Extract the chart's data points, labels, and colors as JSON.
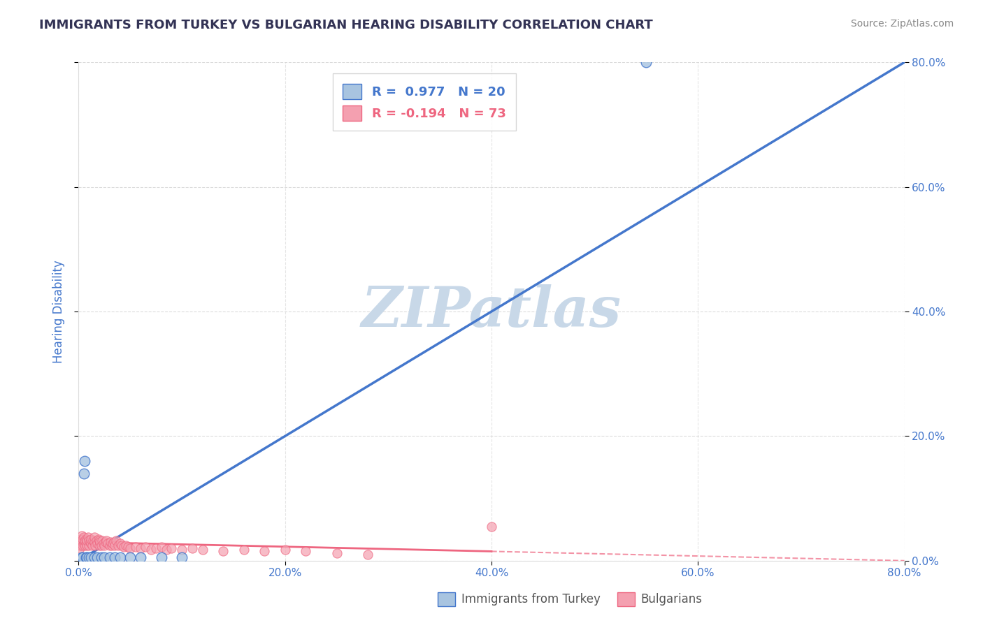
{
  "title": "IMMIGRANTS FROM TURKEY VS BULGARIAN HEARING DISABILITY CORRELATION CHART",
  "source_text": "Source: ZipAtlas.com",
  "ylabel": "Hearing Disability",
  "xlim": [
    0,
    0.8
  ],
  "ylim": [
    0,
    0.8
  ],
  "xticks": [
    0.0,
    0.2,
    0.4,
    0.6,
    0.8
  ],
  "yticks": [
    0.0,
    0.2,
    0.4,
    0.6,
    0.8
  ],
  "xtick_labels": [
    "0.0%",
    "20.0%",
    "40.0%",
    "60.0%",
    "80.0%"
  ],
  "ytick_labels": [
    "0.0%",
    "20.0%",
    "40.0%",
    "60.0%",
    "80.0%"
  ],
  "blue_color": "#A8C4E0",
  "pink_color": "#F4A0B0",
  "blue_line_color": "#4477CC",
  "pink_line_color": "#EE6680",
  "R_blue": 0.977,
  "N_blue": 20,
  "R_pink": -0.194,
  "N_pink": 73,
  "legend_label_blue": "Immigrants from Turkey",
  "legend_label_pink": "Bulgarians",
  "watermark": "ZIPatlas",
  "watermark_color": "#C8D8E8",
  "background_color": "#FFFFFF",
  "grid_color": "#CCCCCC",
  "title_color": "#333355",
  "axis_label_color": "#4477CC",
  "tick_label_color": "#4477CC",
  "blue_points_x": [
    0.003,
    0.004,
    0.005,
    0.006,
    0.007,
    0.008,
    0.01,
    0.012,
    0.015,
    0.018,
    0.022,
    0.025,
    0.03,
    0.035,
    0.04,
    0.05,
    0.06,
    0.08,
    0.1,
    0.55
  ],
  "blue_points_y": [
    0.005,
    0.005,
    0.14,
    0.16,
    0.005,
    0.005,
    0.005,
    0.005,
    0.005,
    0.005,
    0.005,
    0.005,
    0.005,
    0.005,
    0.005,
    0.005,
    0.005,
    0.005,
    0.005,
    0.8
  ],
  "pink_points_x": [
    0.001,
    0.001,
    0.002,
    0.002,
    0.003,
    0.003,
    0.004,
    0.004,
    0.005,
    0.005,
    0.006,
    0.006,
    0.007,
    0.007,
    0.008,
    0.008,
    0.009,
    0.01,
    0.01,
    0.011,
    0.012,
    0.012,
    0.013,
    0.014,
    0.015,
    0.015,
    0.016,
    0.017,
    0.018,
    0.019,
    0.02,
    0.02,
    0.021,
    0.022,
    0.023,
    0.024,
    0.025,
    0.026,
    0.027,
    0.028,
    0.03,
    0.031,
    0.032,
    0.033,
    0.034,
    0.035,
    0.036,
    0.038,
    0.04,
    0.042,
    0.044,
    0.046,
    0.048,
    0.05,
    0.055,
    0.06,
    0.065,
    0.07,
    0.075,
    0.08,
    0.085,
    0.09,
    0.1,
    0.11,
    0.12,
    0.14,
    0.16,
    0.18,
    0.2,
    0.22,
    0.25,
    0.28,
    0.4
  ],
  "pink_points_y": [
    0.02,
    0.03,
    0.025,
    0.035,
    0.03,
    0.04,
    0.025,
    0.035,
    0.028,
    0.038,
    0.025,
    0.032,
    0.028,
    0.035,
    0.025,
    0.032,
    0.038,
    0.025,
    0.032,
    0.03,
    0.028,
    0.035,
    0.025,
    0.032,
    0.03,
    0.038,
    0.025,
    0.032,
    0.028,
    0.035,
    0.025,
    0.032,
    0.03,
    0.025,
    0.032,
    0.028,
    0.025,
    0.03,
    0.032,
    0.028,
    0.025,
    0.03,
    0.025,
    0.028,
    0.03,
    0.025,
    0.032,
    0.025,
    0.028,
    0.025,
    0.022,
    0.025,
    0.022,
    0.02,
    0.022,
    0.02,
    0.022,
    0.018,
    0.02,
    0.022,
    0.018,
    0.02,
    0.018,
    0.02,
    0.018,
    0.015,
    0.018,
    0.015,
    0.018,
    0.015,
    0.012,
    0.01,
    0.055
  ]
}
